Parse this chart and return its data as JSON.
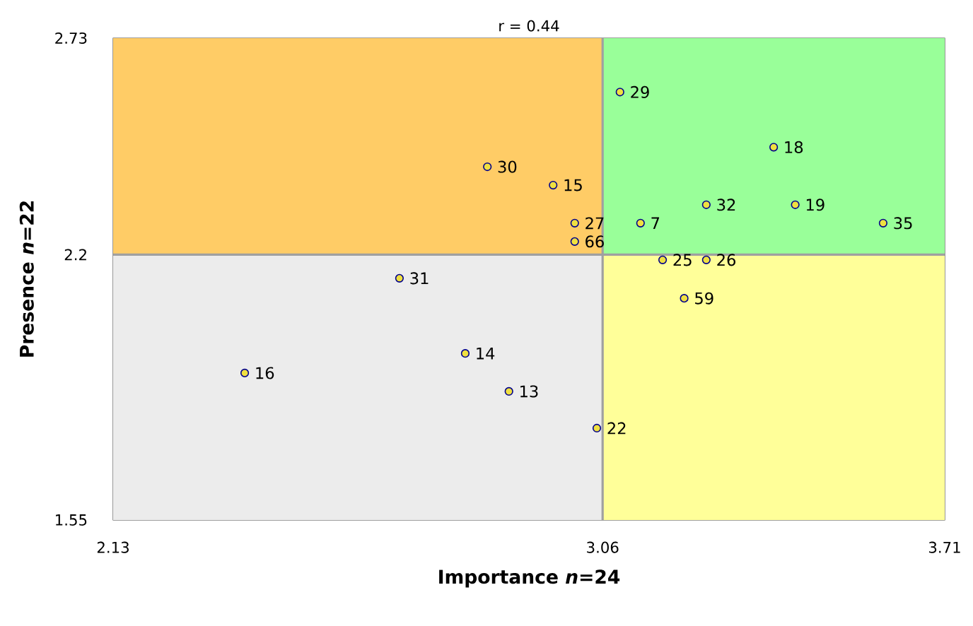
{
  "chart_data": {
    "type": "scatter",
    "title": "r = 0.44",
    "xlabel": "Importance *n*=24",
    "ylabel": "Presence *n*=22",
    "xlim": [
      2.13,
      3.71
    ],
    "ylim": [
      1.55,
      2.73
    ],
    "xticks": [
      2.13,
      3.06,
      3.71
    ],
    "yticks": [
      1.55,
      2.2,
      2.73
    ],
    "marker": "circle",
    "series": [
      {
        "color": "#f0e040",
        "x": [
          3.093,
          3.385,
          2.841,
          2.966,
          3.257,
          3.426,
          3.007,
          3.132,
          3.593,
          3.007,
          3.174,
          3.257,
          2.674,
          3.215,
          2.799,
          2.38,
          2.882,
          3.049
        ],
        "values": [
          2.598,
          2.463,
          2.415,
          2.37,
          2.322,
          2.322,
          2.277,
          2.277,
          2.277,
          2.232,
          2.187,
          2.187,
          2.142,
          2.093,
          1.958,
          1.91,
          1.865,
          1.775
        ]
      }
    ],
    "ref_lines": [
      {
        "axis": "x",
        "value": 3.06,
        "color": "#a0a0a0"
      },
      {
        "axis": "y",
        "value": 2.2,
        "color": "#a0a0a0"
      }
    ],
    "bands": [
      {
        "axis": "x",
        "from": 2.13,
        "to": 3.06,
        "color": "#ffcc66"
      },
      {
        "axis": "x",
        "from": 3.06,
        "to": 3.71,
        "color": "#99ff99"
      },
      {
        "axis": "x",
        "from": 2.13,
        "to": 3.06,
        "color": "#ececec"
      },
      {
        "axis": "x",
        "from": 3.06,
        "to": 3.71,
        "color": "#ffff99"
      }
    ],
    "annotations": [
      {
        "text": "29",
        "x": 3.093,
        "y": 2.598
      },
      {
        "text": "18",
        "x": 3.385,
        "y": 2.463
      },
      {
        "text": "30",
        "x": 2.841,
        "y": 2.415
      },
      {
        "text": "15",
        "x": 2.966,
        "y": 2.37
      },
      {
        "text": "32",
        "x": 3.257,
        "y": 2.322
      },
      {
        "text": "19",
        "x": 3.426,
        "y": 2.322
      },
      {
        "text": "27",
        "x": 3.007,
        "y": 2.277
      },
      {
        "text": "7",
        "x": 3.132,
        "y": 2.277
      },
      {
        "text": "35",
        "x": 3.593,
        "y": 2.277
      },
      {
        "text": "66",
        "x": 3.007,
        "y": 2.232
      },
      {
        "text": "25",
        "x": 3.174,
        "y": 2.187
      },
      {
        "text": "26",
        "x": 3.257,
        "y": 2.187
      },
      {
        "text": "31",
        "x": 2.674,
        "y": 2.142
      },
      {
        "text": "59",
        "x": 3.215,
        "y": 2.093
      },
      {
        "text": "14",
        "x": 2.799,
        "y": 1.958
      },
      {
        "text": "16",
        "x": 2.38,
        "y": 1.91
      },
      {
        "text": "13",
        "x": 2.882,
        "y": 1.865
      },
      {
        "text": "22",
        "x": 3.049,
        "y": 1.775
      }
    ]
  }
}
